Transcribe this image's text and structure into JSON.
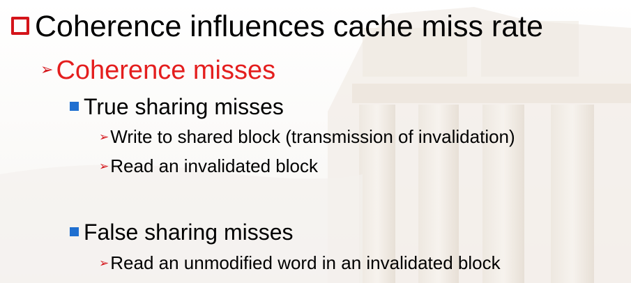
{
  "slide": {
    "heading": "Coherence influences cache miss rate",
    "subheading": "Coherence misses",
    "true_sharing": {
      "title": "True sharing misses",
      "items": [
        "Write to shared block (transmission of invalidation)",
        "Read an invalidated block"
      ]
    },
    "false_sharing": {
      "title": "False sharing misses",
      "items": [
        "Read an unmodified word in an invalidated block"
      ]
    }
  },
  "colors": {
    "heading_text": "#000000",
    "subheading_text": "#e41e1e",
    "box_bullet": "#d4141a",
    "square_bullet": "#1f6fd0",
    "arrow_bullet": "#d4141a"
  },
  "icons": {
    "level1_bullet": "hollow-square-bullet-icon",
    "level2_bullet": "arrowhead-bullet-icon",
    "level3_bullet": "filled-square-bullet-icon",
    "level4_bullet": "arrowhead-bullet-icon"
  }
}
